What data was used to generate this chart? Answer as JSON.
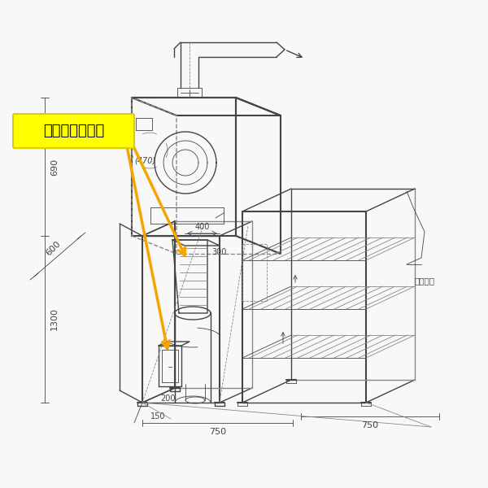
{
  "bg_color": "#f8f8f8",
  "sketch_color": "#444444",
  "sketch_light": "#888888",
  "arrow_color": "#f5a500",
  "label_bg": "#ffff00",
  "label_text": "外付け式フード",
  "label_text_color": "#000000",
  "dim_690": "690",
  "dim_600": "600",
  "dim_1300": "1300",
  "dim_400": "400",
  "dim_300": "300",
  "dim_200": "200",
  "dim_150": "150",
  "dim_750a": "750",
  "dim_750b": "750",
  "dim_470": "(470)",
  "note_right": "（前扉）"
}
